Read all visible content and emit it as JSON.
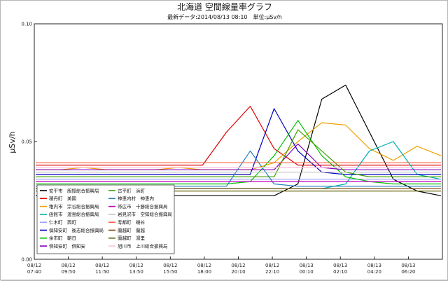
{
  "chart_data": {
    "type": "line",
    "title": "北海道 空間線量率グラフ",
    "subtitle": "最新データ:2014/08/13 08:10　単位:μSv/h",
    "ylabel": "μSv/h",
    "ylim": [
      0,
      0.1
    ],
    "yticks": [
      "0.00",
      "0.05",
      "0.10"
    ],
    "grid": false,
    "legend": "bottom-left inside plot",
    "x_ticks": [
      {
        "date": "08/12",
        "time": "07:40"
      },
      {
        "date": "08/12",
        "time": "09:50"
      },
      {
        "date": "08/12",
        "time": "11:50"
      },
      {
        "date": "08/12",
        "time": "13:50"
      },
      {
        "date": "08/12",
        "time": "15:50"
      },
      {
        "date": "08/12",
        "time": "18:00"
      },
      {
        "date": "08/12",
        "time": "20:10"
      },
      {
        "date": "08/12",
        "time": "22:10"
      },
      {
        "date": "08/13",
        "time": "00:10"
      },
      {
        "date": "08/13",
        "time": "02:10"
      },
      {
        "date": "08/13",
        "time": "04:20"
      },
      {
        "date": "08/13",
        "time": "06:20"
      }
    ],
    "x": [
      "07:40",
      "09:50",
      "11:50",
      "13:50",
      "15:50",
      "18:00",
      "20:10",
      "22:10",
      "23:10",
      "00:10",
      "01:10",
      "02:10",
      "03:10",
      "04:20",
      "05:20",
      "06:20",
      "07:20",
      "08:10"
    ],
    "series": [
      {
        "name": "安平市　胆振総合振興局",
        "color": "#000000",
        "values": [
          0.027,
          0.027,
          0.027,
          0.027,
          0.027,
          0.027,
          0.027,
          0.027,
          0.027,
          0.027,
          0.027,
          0.032,
          0.068,
          0.074,
          0.054,
          0.034,
          0.029,
          0.027
        ]
      },
      {
        "name": "積丹町　美国",
        "color": "#e00000",
        "values": [
          0.04,
          0.04,
          0.04,
          0.04,
          0.04,
          0.04,
          0.04,
          0.04,
          0.054,
          0.065,
          0.047,
          0.04,
          0.04,
          0.04,
          0.04,
          0.04,
          0.04,
          0.04
        ]
      },
      {
        "name": "稚内市　宗谷総合振興局",
        "color": "#f0a000",
        "values": [
          0.038,
          0.038,
          0.039,
          0.038,
          0.038,
          0.038,
          0.039,
          0.038,
          0.038,
          0.038,
          0.041,
          0.05,
          0.058,
          0.057,
          0.047,
          0.042,
          0.048,
          0.044
        ]
      },
      {
        "name": "函館市　渡島総合振興局",
        "color": "#00b0b0",
        "values": [
          0.03,
          0.03,
          0.03,
          0.03,
          0.03,
          0.03,
          0.03,
          0.03,
          0.03,
          0.03,
          0.03,
          0.03,
          0.03,
          0.032,
          0.046,
          0.05,
          0.036,
          0.034
        ]
      },
      {
        "name": "仁木町　西町",
        "color": "#a0a0ff",
        "values": [
          0.034,
          0.034,
          0.034,
          0.034,
          0.034,
          0.034,
          0.034,
          0.034,
          0.034,
          0.034,
          0.034,
          0.034,
          0.034,
          0.034,
          0.034,
          0.034,
          0.034,
          0.034
        ]
      },
      {
        "name": "倶知安町　後志総合振興局",
        "color": "#0000c0",
        "values": [
          0.036,
          0.036,
          0.036,
          0.036,
          0.036,
          0.036,
          0.036,
          0.036,
          0.036,
          0.036,
          0.064,
          0.046,
          0.037,
          0.036,
          0.036,
          0.036,
          0.036,
          0.036
        ]
      },
      {
        "name": "余市町　朝日",
        "color": "#00c000",
        "values": [
          0.032,
          0.032,
          0.032,
          0.032,
          0.032,
          0.032,
          0.032,
          0.032,
          0.032,
          0.033,
          0.044,
          0.059,
          0.044,
          0.035,
          0.033,
          0.032,
          0.032,
          0.032
        ]
      },
      {
        "name": "倶知安町　倶知安",
        "color": "#8000c0",
        "values": [
          0.038,
          0.038,
          0.038,
          0.038,
          0.038,
          0.038,
          0.038,
          0.038,
          0.038,
          0.038,
          0.038,
          0.049,
          0.039,
          0.038,
          0.038,
          0.038,
          0.038,
          0.038
        ]
      },
      {
        "name": "古平町　浜町",
        "color": "#40a000",
        "values": [
          0.035,
          0.035,
          0.035,
          0.035,
          0.035,
          0.035,
          0.035,
          0.035,
          0.035,
          0.035,
          0.035,
          0.055,
          0.046,
          0.037,
          0.035,
          0.035,
          0.035,
          0.035
        ]
      },
      {
        "name": "神恵内村　神恵内",
        "color": "#2080c0",
        "values": [
          0.031,
          0.031,
          0.031,
          0.031,
          0.031,
          0.031,
          0.031,
          0.031,
          0.031,
          0.046,
          0.032,
          0.031,
          0.031,
          0.031,
          0.031,
          0.031,
          0.031,
          0.031
        ]
      },
      {
        "name": "帯広市　十勝総合振興局",
        "color": "#c000c0",
        "values": [
          0.033,
          0.033,
          0.033,
          0.033,
          0.033,
          0.033,
          0.033,
          0.033,
          0.033,
          0.033,
          0.033,
          0.033,
          0.033,
          0.033,
          0.033,
          0.033,
          0.033,
          0.033
        ]
      },
      {
        "name": "岩見沢市　空知総合振興局",
        "color": "#c0c0c0",
        "values": [
          0.037,
          0.037,
          0.037,
          0.037,
          0.037,
          0.037,
          0.037,
          0.037,
          0.037,
          0.037,
          0.037,
          0.037,
          0.037,
          0.037,
          0.037,
          0.037,
          0.037,
          0.037
        ]
      },
      {
        "name": "寿都町　磯谷",
        "color": "#ff6040",
        "values": [
          0.041,
          0.041,
          0.041,
          0.041,
          0.041,
          0.041,
          0.041,
          0.041,
          0.041,
          0.041,
          0.041,
          0.041,
          0.041,
          0.041,
          0.041,
          0.041,
          0.041,
          0.041
        ]
      },
      {
        "name": "蘭越町　蘭越",
        "color": "#804000",
        "values": [
          0.03,
          0.03,
          0.03,
          0.03,
          0.03,
          0.03,
          0.03,
          0.03,
          0.03,
          0.03,
          0.03,
          0.03,
          0.03,
          0.03,
          0.03,
          0.03,
          0.03,
          0.03
        ]
      },
      {
        "name": "蘭越町　湯里",
        "color": "#606000",
        "values": [
          0.029,
          0.029,
          0.029,
          0.029,
          0.029,
          0.029,
          0.029,
          0.029,
          0.029,
          0.029,
          0.029,
          0.029,
          0.029,
          0.029,
          0.029,
          0.029,
          0.029,
          0.029
        ]
      },
      {
        "name": "旭川市　上川総合振興局",
        "color": "#ffc0e0",
        "values": [
          0.039,
          0.039,
          0.039,
          0.039,
          0.039,
          0.039,
          0.039,
          0.039,
          0.039,
          0.039,
          0.039,
          0.039,
          0.039,
          0.039,
          0.039,
          0.039,
          0.039,
          0.039
        ]
      }
    ]
  }
}
